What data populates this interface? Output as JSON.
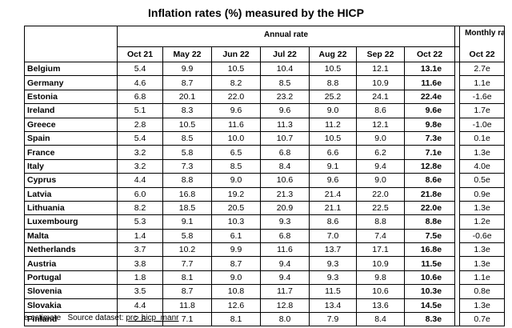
{
  "title": "Inflation rates (%) measured by the HICP",
  "header": {
    "annual_group": "Annual rate",
    "monthly_group": "Monthly rate",
    "annual_columns": [
      "Oct 21",
      "May 22",
      "Jun 22",
      "Jul 22",
      "Aug 22",
      "Sep 22",
      "Oct 22"
    ],
    "monthly_column": "Oct 22"
  },
  "rows": [
    {
      "country": "Belgium",
      "annual": [
        "5.4",
        "9.9",
        "10.5",
        "10.4",
        "10.5",
        "12.1",
        "13.1e"
      ],
      "monthly": "2.7e"
    },
    {
      "country": "Germany",
      "annual": [
        "4.6",
        "8.7",
        "8.2",
        "8.5",
        "8.8",
        "10.9",
        "11.6e"
      ],
      "monthly": "1.1e"
    },
    {
      "country": "Estonia",
      "annual": [
        "6.8",
        "20.1",
        "22.0",
        "23.2",
        "25.2",
        "24.1",
        "22.4e"
      ],
      "monthly": "-1.6e"
    },
    {
      "country": "Ireland",
      "annual": [
        "5.1",
        "8.3",
        "9.6",
        "9.6",
        "9.0",
        "8.6",
        "9.6e"
      ],
      "monthly": "1.7e"
    },
    {
      "country": "Greece",
      "annual": [
        "2.8",
        "10.5",
        "11.6",
        "11.3",
        "11.2",
        "12.1",
        "9.8e"
      ],
      "monthly": "-1.0e"
    },
    {
      "country": "Spain",
      "annual": [
        "5.4",
        "8.5",
        "10.0",
        "10.7",
        "10.5",
        "9.0",
        "7.3e"
      ],
      "monthly": "0.1e"
    },
    {
      "country": "France",
      "annual": [
        "3.2",
        "5.8",
        "6.5",
        "6.8",
        "6.6",
        "6.2",
        "7.1e"
      ],
      "monthly": "1.3e"
    },
    {
      "country": "Italy",
      "annual": [
        "3.2",
        "7.3",
        "8.5",
        "8.4",
        "9.1",
        "9.4",
        "12.8e"
      ],
      "monthly": "4.0e"
    },
    {
      "country": "Cyprus",
      "annual": [
        "4.4",
        "8.8",
        "9.0",
        "10.6",
        "9.6",
        "9.0",
        "8.6e"
      ],
      "monthly": "0.5e"
    },
    {
      "country": "Latvia",
      "annual": [
        "6.0",
        "16.8",
        "19.2",
        "21.3",
        "21.4",
        "22.0",
        "21.8e"
      ],
      "monthly": "0.9e"
    },
    {
      "country": "Lithuania",
      "annual": [
        "8.2",
        "18.5",
        "20.5",
        "20.9",
        "21.1",
        "22.5",
        "22.0e"
      ],
      "monthly": "1.3e"
    },
    {
      "country": "Luxembourg",
      "annual": [
        "5.3",
        "9.1",
        "10.3",
        "9.3",
        "8.6",
        "8.8",
        "8.8e"
      ],
      "monthly": "1.2e"
    },
    {
      "country": "Malta",
      "annual": [
        "1.4",
        "5.8",
        "6.1",
        "6.8",
        "7.0",
        "7.4",
        "7.5e"
      ],
      "monthly": "-0.6e"
    },
    {
      "country": "Netherlands",
      "annual": [
        "3.7",
        "10.2",
        "9.9",
        "11.6",
        "13.7",
        "17.1",
        "16.8e"
      ],
      "monthly": "1.3e"
    },
    {
      "country": "Austria",
      "annual": [
        "3.8",
        "7.7",
        "8.7",
        "9.4",
        "9.3",
        "10.9",
        "11.5e"
      ],
      "monthly": "1.3e"
    },
    {
      "country": "Portugal",
      "annual": [
        "1.8",
        "8.1",
        "9.0",
        "9.4",
        "9.3",
        "9.8",
        "10.6e"
      ],
      "monthly": "1.1e"
    },
    {
      "country": "Slovenia",
      "annual": [
        "3.5",
        "8.7",
        "10.8",
        "11.7",
        "11.5",
        "10.6",
        "10.3e"
      ],
      "monthly": "0.8e"
    },
    {
      "country": "Slovakia",
      "annual": [
        "4.4",
        "11.8",
        "12.6",
        "12.8",
        "13.4",
        "13.6",
        "14.5e"
      ],
      "monthly": "1.3e"
    },
    {
      "country": "Finland",
      "annual": [
        "2.8",
        "7.1",
        "8.1",
        "8.0",
        "7.9",
        "8.4",
        "8.3e"
      ],
      "monthly": "0.7e"
    }
  ],
  "footnote": {
    "estimate_note": "e estimate",
    "source_label": "Source dataset:",
    "source_code": "prc_hicp_manr"
  }
}
